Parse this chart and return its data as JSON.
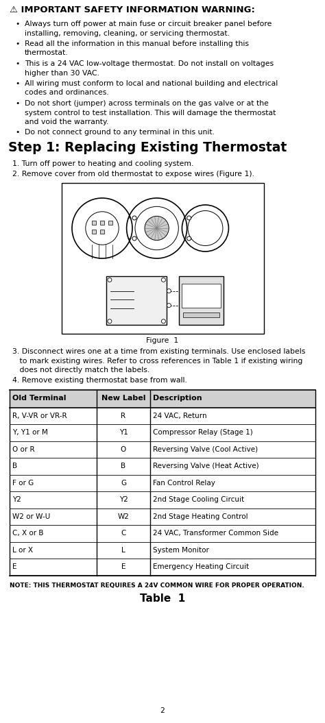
{
  "warning_title": "⚠ IMPORTANT SAFETY INFORMATION WARNING:",
  "warning_bullets": [
    "Always turn off power at main fuse or circuit breaker panel before\ninstalling, removing, cleaning, or servicing thermostat.",
    "Read all the information in this manual before installing this\nthermostat.",
    "This is a 24 VAC low-voltage thermostat. Do not install on voltages\nhigher than 30 VAC.",
    "All wiring must conform to local and national building and electrical\ncodes and ordinances.",
    "Do not short (jumper) across terminals on the gas valve or at the\nsystem control to test installation. This will damage the thermostat\nand void the warranty.",
    "Do not connect ground to any terminal in this unit."
  ],
  "step_title": "Step 1: Replacing Existing Thermostat",
  "step1": "1. Turn off power to heating and cooling system.",
  "step2": "2. Remove cover from old thermostat to expose wires (Figure 1).",
  "step3_lines": [
    "3. Disconnect wires one at a time from existing terminals. Use enclosed labels",
    "   to mark existing wires. Refer to cross references in Table 1 if existing wiring",
    "   does not directly match the labels."
  ],
  "step4": "4. Remove existing thermostat base from wall.",
  "figure_caption": "Figure  1",
  "table_headers": [
    "Old Terminal",
    "New Label",
    "Description"
  ],
  "table_rows": [
    [
      "R, V-VR or VR-R",
      "R",
      "24 VAC, Return"
    ],
    [
      "Y, Y1 or M",
      "Y1",
      "Compressor Relay (Stage 1)"
    ],
    [
      "O or R",
      "O",
      "Reversing Valve (Cool Active)"
    ],
    [
      "B",
      "B",
      "Reversing Valve (Heat Active)"
    ],
    [
      "F or G",
      "G",
      "Fan Control Relay"
    ],
    [
      "Y2",
      "Y2",
      "2nd Stage Cooling Circuit"
    ],
    [
      "W2 or W-U",
      "W2",
      "2nd Stage Heating Control"
    ],
    [
      "C, X or B",
      "C",
      "24 VAC, Transformer Common Side"
    ],
    [
      "L or X",
      "L",
      "System Monitor"
    ],
    [
      "E",
      "E",
      "Emergency Heating Circuit"
    ]
  ],
  "note_text": "NOTE: THIS THERMOSTAT REQUIRES A 24V COMMON WIRE FOR PROPER OPERATION.",
  "table_caption": "Table  1",
  "page_number": "2",
  "bg_color": "#ffffff",
  "text_color": "#000000"
}
